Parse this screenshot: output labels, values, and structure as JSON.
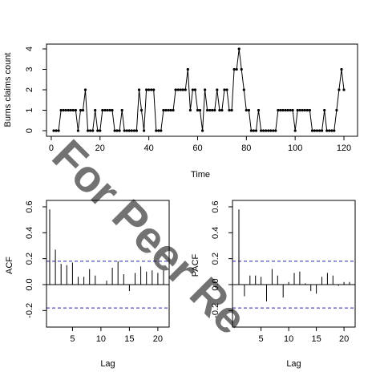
{
  "watermark": "For Peer Re",
  "colors": {
    "line": "#000000",
    "ci": "#2222aa",
    "watermark": "#a8dff4"
  },
  "chart_data": [
    {
      "type": "line",
      "xlabel": "Time",
      "ylabel": "Burns claims count",
      "xlim": [
        1,
        120
      ],
      "ylim": [
        0,
        4
      ],
      "x_ticks": [
        0,
        20,
        40,
        60,
        80,
        100,
        120
      ],
      "y_ticks": [
        0,
        1,
        2,
        3,
        4
      ],
      "marker": "point",
      "x": [
        1,
        2,
        3,
        4,
        5,
        6,
        7,
        8,
        9,
        10,
        11,
        12,
        13,
        14,
        15,
        16,
        17,
        18,
        19,
        20,
        21,
        22,
        23,
        24,
        25,
        26,
        27,
        28,
        29,
        30,
        31,
        32,
        33,
        34,
        35,
        36,
        37,
        38,
        39,
        40,
        41,
        42,
        43,
        44,
        45,
        46,
        47,
        48,
        49,
        50,
        51,
        52,
        53,
        54,
        55,
        56,
        57,
        58,
        59,
        60,
        61,
        62,
        63,
        64,
        65,
        66,
        67,
        68,
        69,
        70,
        71,
        72,
        73,
        74,
        75,
        76,
        77,
        78,
        79,
        80,
        81,
        82,
        83,
        84,
        85,
        86,
        87,
        88,
        89,
        90,
        91,
        92,
        93,
        94,
        95,
        96,
        97,
        98,
        99,
        100,
        101,
        102,
        103,
        104,
        105,
        106,
        107,
        108,
        109,
        110,
        111,
        112,
        113,
        114,
        115,
        116,
        117,
        118,
        119,
        120
      ],
      "y": [
        0,
        0,
        0,
        1,
        1,
        1,
        1,
        1,
        1,
        1,
        0,
        1,
        1,
        2,
        0,
        0,
        0,
        1,
        0,
        0,
        1,
        1,
        1,
        1,
        1,
        0,
        0,
        0,
        1,
        0,
        0,
        0,
        0,
        0,
        0,
        2,
        1,
        0,
        2,
        2,
        2,
        2,
        0,
        0,
        0,
        1,
        1,
        1,
        1,
        1,
        2,
        2,
        2,
        2,
        2,
        3,
        1,
        2,
        2,
        1,
        1,
        0,
        2,
        1,
        1,
        1,
        1,
        2,
        1,
        1,
        2,
        2,
        1,
        1,
        3,
        3,
        4,
        3,
        2,
        1,
        1,
        0,
        0,
        0,
        1,
        0,
        0,
        0,
        0,
        0,
        0,
        0,
        1,
        1,
        1,
        1,
        1,
        1,
        1,
        0,
        1,
        1,
        1,
        1,
        1,
        1,
        0,
        0,
        0,
        0,
        0,
        1,
        0,
        0,
        0,
        0,
        1,
        2,
        3,
        2
      ]
    },
    {
      "type": "bar",
      "xlabel": "Lag",
      "ylabel": "ACF",
      "xlim": [
        0,
        21
      ],
      "ylim": [
        -0.27,
        0.65
      ],
      "x_ticks": [
        5,
        10,
        15,
        20
      ],
      "y_ticks": [
        -0.2,
        0.0,
        0.2,
        0.4,
        0.6
      ],
      "ci": [
        0.18,
        -0.18
      ],
      "categories": [
        1,
        2,
        3,
        4,
        5,
        6,
        7,
        8,
        9,
        10,
        11,
        12,
        13,
        14,
        15,
        16,
        17,
        18,
        19,
        20,
        21
      ],
      "values": [
        0.58,
        0.27,
        0.16,
        0.15,
        0.17,
        0.06,
        0.06,
        0.12,
        0.07,
        0.0,
        0.03,
        0.13,
        0.18,
        0.08,
        -0.05,
        0.09,
        0.14,
        0.1,
        0.11,
        0.09,
        0.11
      ]
    },
    {
      "type": "bar",
      "xlabel": "Lag",
      "ylabel": "PACF",
      "xlim": [
        0,
        21
      ],
      "ylim": [
        -0.27,
        0.65
      ],
      "x_ticks": [
        5,
        10,
        15,
        20
      ],
      "y_ticks": [
        -0.2,
        0.0,
        0.2,
        0.4,
        0.6
      ],
      "ci": [
        0.18,
        -0.18
      ],
      "categories": [
        1,
        2,
        3,
        4,
        5,
        6,
        7,
        8,
        9,
        10,
        11,
        12,
        13,
        14,
        15,
        16,
        17,
        18,
        19,
        20,
        21
      ],
      "values": [
        0.58,
        -0.09,
        0.07,
        0.07,
        0.06,
        -0.13,
        0.12,
        0.07,
        -0.1,
        0.02,
        0.09,
        0.1,
        0.01,
        -0.05,
        -0.07,
        0.06,
        0.09,
        0.07,
        -0.01,
        0.02,
        0.02
      ]
    }
  ]
}
